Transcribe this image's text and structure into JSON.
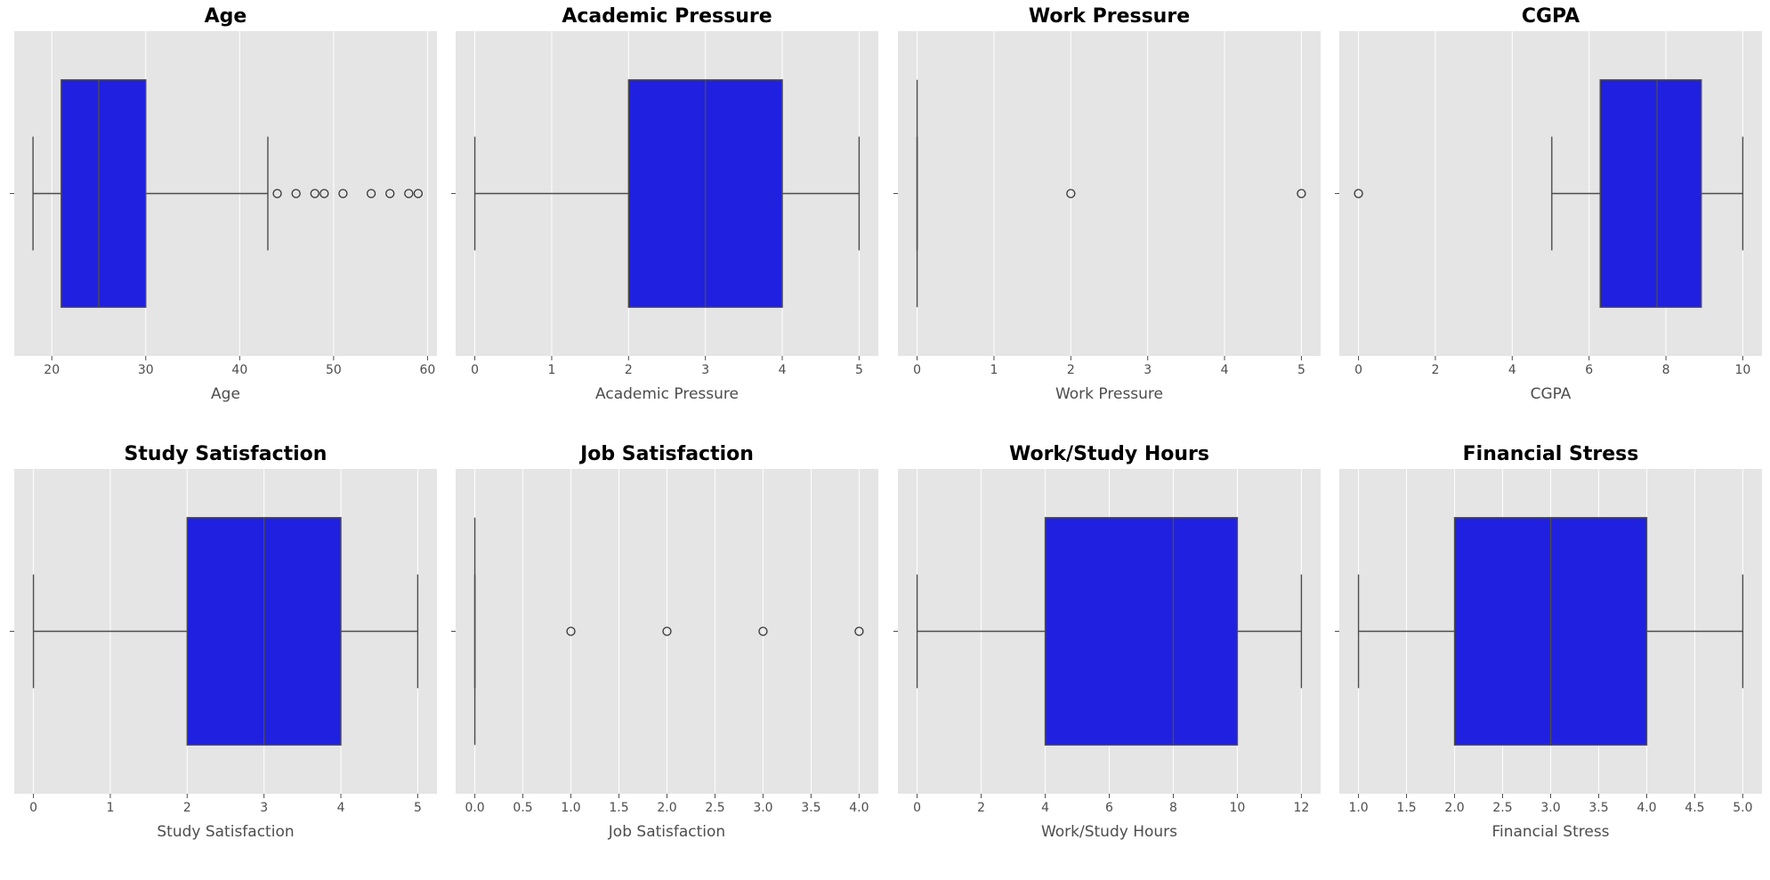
{
  "colors": {
    "panel_bg": "#e5e5e5",
    "grid": "#ffffff",
    "box_fill": "#2020e0",
    "line": "#4d4d4d",
    "text": "#4d4d4d",
    "title": "#000000"
  },
  "chart_data": [
    {
      "type": "boxplot",
      "title": "Age",
      "xlabel": "Age",
      "xlim": [
        16,
        61
      ],
      "ticks": [
        20,
        30,
        40,
        50,
        60
      ],
      "tick_labels": [
        "20",
        "30",
        "40",
        "50",
        "60"
      ],
      "whisker_low": 18,
      "q1": 21,
      "median": 25,
      "q3": 30,
      "whisker_high": 43,
      "outliers": [
        44,
        46,
        48,
        49,
        51,
        54,
        56,
        58,
        59
      ]
    },
    {
      "type": "boxplot",
      "title": "Academic Pressure",
      "xlabel": "Academic Pressure",
      "xlim": [
        -0.25,
        5.25
      ],
      "ticks": [
        0,
        1,
        2,
        3,
        4,
        5
      ],
      "tick_labels": [
        "0",
        "1",
        "2",
        "3",
        "4",
        "5"
      ],
      "whisker_low": 0,
      "q1": 2,
      "median": 3,
      "q3": 4,
      "whisker_high": 5,
      "outliers": []
    },
    {
      "type": "boxplot",
      "title": "Work Pressure",
      "xlabel": "Work Pressure",
      "xlim": [
        -0.25,
        5.25
      ],
      "ticks": [
        0,
        1,
        2,
        3,
        4,
        5
      ],
      "tick_labels": [
        "0",
        "1",
        "2",
        "3",
        "4",
        "5"
      ],
      "whisker_low": 0,
      "q1": 0,
      "median": 0,
      "q3": 0,
      "whisker_high": 0,
      "outliers": [
        2,
        5
      ]
    },
    {
      "type": "boxplot",
      "title": "CGPA",
      "xlabel": "CGPA",
      "xlim": [
        -0.5,
        10.5
      ],
      "ticks": [
        0,
        2,
        4,
        6,
        8,
        10
      ],
      "tick_labels": [
        "0",
        "2",
        "4",
        "6",
        "8",
        "10"
      ],
      "whisker_low": 5.03,
      "q1": 6.29,
      "median": 7.77,
      "q3": 8.92,
      "whisker_high": 10,
      "outliers": [
        0
      ]
    },
    {
      "type": "boxplot",
      "title": "Study Satisfaction",
      "xlabel": "Study Satisfaction",
      "xlim": [
        -0.25,
        5.25
      ],
      "ticks": [
        0,
        1,
        2,
        3,
        4,
        5
      ],
      "tick_labels": [
        "0",
        "1",
        "2",
        "3",
        "4",
        "5"
      ],
      "whisker_low": 0,
      "q1": 2,
      "median": 3,
      "q3": 4,
      "whisker_high": 5,
      "outliers": []
    },
    {
      "type": "boxplot",
      "title": "Job Satisfaction",
      "xlabel": "Job Satisfaction",
      "xlim": [
        -0.2,
        4.2
      ],
      "ticks": [
        0,
        0.5,
        1,
        1.5,
        2,
        2.5,
        3,
        3.5,
        4
      ],
      "tick_labels": [
        "0.0",
        "0.5",
        "1.0",
        "1.5",
        "2.0",
        "2.5",
        "3.0",
        "3.5",
        "4.0"
      ],
      "whisker_low": 0,
      "q1": 0,
      "median": 0,
      "q3": 0,
      "whisker_high": 0,
      "outliers": [
        1,
        2,
        3,
        4
      ]
    },
    {
      "type": "boxplot",
      "title": "Work/Study Hours",
      "xlabel": "Work/Study Hours",
      "xlim": [
        -0.6,
        12.6
      ],
      "ticks": [
        0,
        2,
        4,
        6,
        8,
        10,
        12
      ],
      "tick_labels": [
        "0",
        "2",
        "4",
        "6",
        "8",
        "10",
        "12"
      ],
      "whisker_low": 0,
      "q1": 4,
      "median": 8,
      "q3": 10,
      "whisker_high": 12,
      "outliers": []
    },
    {
      "type": "boxplot",
      "title": "Financial Stress",
      "xlabel": "Financial Stress",
      "xlim": [
        0.8,
        5.2
      ],
      "ticks": [
        1,
        1.5,
        2,
        2.5,
        3,
        3.5,
        4,
        4.5,
        5
      ],
      "tick_labels": [
        "1.0",
        "1.5",
        "2.0",
        "2.5",
        "3.0",
        "3.5",
        "4.0",
        "4.5",
        "5.0"
      ],
      "whisker_low": 1,
      "q1": 2,
      "median": 3,
      "q3": 4,
      "whisker_high": 5,
      "outliers": []
    }
  ]
}
